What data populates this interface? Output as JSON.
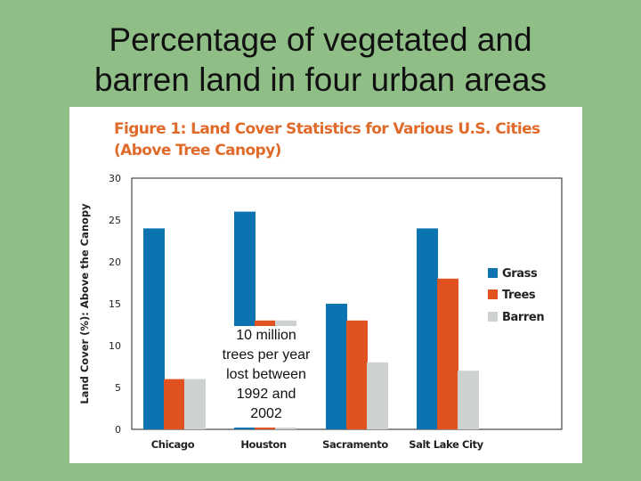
{
  "slide_title_line1": "Percentage of vegetated and",
  "slide_title_line2": "barren land in four urban areas",
  "figure": {
    "title_line1": "Figure 1:  Land Cover Statistics for Various U.S. Cities",
    "title_line2": "(Above Tree Canopy)"
  },
  "callout_lines": [
    "10 million",
    "trees per year",
    "lost between",
    "1992 and",
    "2002"
  ],
  "colors": {
    "background": "#8fbf87",
    "title_accent": "#e06a2a",
    "grass": "#0a73b0",
    "trees": "#e0521f",
    "barren": "#cdd1d0"
  },
  "chart_data": {
    "type": "bar",
    "title": "Figure 1:  Land Cover Statistics for Various U.S. Cities (Above Tree Canopy)",
    "xlabel": "",
    "ylabel": "Land Cover (%): Above the Canopy",
    "categories": [
      "Chicago",
      "Houston",
      "Sacramento",
      "Salt Lake City"
    ],
    "series": [
      {
        "name": "Grass",
        "values": [
          24,
          26,
          15,
          24
        ]
      },
      {
        "name": "Trees",
        "values": [
          6,
          13,
          13,
          18
        ]
      },
      {
        "name": "Barren",
        "values": [
          6,
          13,
          8,
          7
        ]
      }
    ],
    "ylim": [
      0,
      30
    ],
    "yticks": [
      "0",
      "5",
      "10",
      "15",
      "20",
      "25",
      "30"
    ],
    "grid": false,
    "legend": "right"
  }
}
